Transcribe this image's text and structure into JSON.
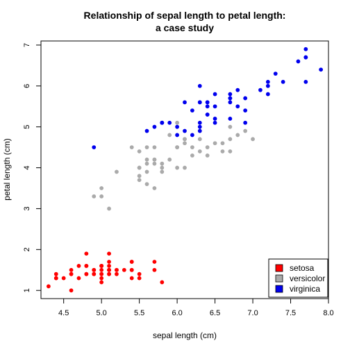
{
  "chart_data": {
    "type": "scatter",
    "title": "Relationship of sepal length to petal length:",
    "subtitle": "a case study",
    "xlabel": "sepal length (cm)",
    "ylabel": "petal length (cm)",
    "xlim": [
      4.2,
      8.0
    ],
    "ylim": [
      0.8,
      7.1
    ],
    "xticks": [
      "4.5",
      "5.0",
      "5.5",
      "6.0",
      "6.5",
      "7.0",
      "7.5",
      "8.0"
    ],
    "yticks": [
      "1",
      "2",
      "3",
      "4",
      "5",
      "6",
      "7"
    ],
    "grid": false,
    "legend_position": "bottom-right",
    "series": [
      {
        "name": "setosa",
        "color": "#ff0000",
        "points": [
          [
            5.1,
            1.4
          ],
          [
            4.9,
            1.4
          ],
          [
            4.7,
            1.3
          ],
          [
            4.6,
            1.5
          ],
          [
            5.0,
            1.4
          ],
          [
            5.4,
            1.7
          ],
          [
            4.6,
            1.4
          ],
          [
            5.0,
            1.5
          ],
          [
            4.4,
            1.4
          ],
          [
            4.9,
            1.5
          ],
          [
            5.4,
            1.5
          ],
          [
            4.8,
            1.6
          ],
          [
            4.8,
            1.4
          ],
          [
            4.3,
            1.1
          ],
          [
            5.8,
            1.2
          ],
          [
            5.7,
            1.5
          ],
          [
            5.4,
            1.3
          ],
          [
            5.1,
            1.4
          ],
          [
            5.7,
            1.7
          ],
          [
            5.1,
            1.5
          ],
          [
            5.4,
            1.7
          ],
          [
            5.1,
            1.5
          ],
          [
            4.6,
            1.0
          ],
          [
            5.1,
            1.7
          ],
          [
            4.8,
            1.9
          ],
          [
            5.0,
            1.6
          ],
          [
            5.0,
            1.6
          ],
          [
            5.2,
            1.5
          ],
          [
            5.2,
            1.4
          ],
          [
            4.7,
            1.6
          ],
          [
            4.8,
            1.6
          ],
          [
            5.4,
            1.5
          ],
          [
            5.2,
            1.5
          ],
          [
            5.5,
            1.4
          ],
          [
            4.9,
            1.5
          ],
          [
            5.0,
            1.2
          ],
          [
            5.5,
            1.3
          ],
          [
            4.9,
            1.4
          ],
          [
            4.4,
            1.3
          ],
          [
            5.1,
            1.5
          ],
          [
            5.0,
            1.3
          ],
          [
            4.5,
            1.3
          ],
          [
            4.4,
            1.3
          ],
          [
            5.0,
            1.6
          ],
          [
            5.1,
            1.9
          ],
          [
            4.8,
            1.4
          ],
          [
            5.1,
            1.6
          ],
          [
            4.6,
            1.4
          ],
          [
            5.3,
            1.5
          ],
          [
            5.0,
            1.4
          ]
        ]
      },
      {
        "name": "versicolor",
        "color": "#aaaaaa",
        "points": [
          [
            7.0,
            4.7
          ],
          [
            6.4,
            4.5
          ],
          [
            6.9,
            4.9
          ],
          [
            5.5,
            4.0
          ],
          [
            6.5,
            4.6
          ],
          [
            5.7,
            4.5
          ],
          [
            6.3,
            4.7
          ],
          [
            4.9,
            3.3
          ],
          [
            6.6,
            4.6
          ],
          [
            5.2,
            3.9
          ],
          [
            5.0,
            3.5
          ],
          [
            5.9,
            4.2
          ],
          [
            6.0,
            4.0
          ],
          [
            6.1,
            4.7
          ],
          [
            5.6,
            3.6
          ],
          [
            6.7,
            4.4
          ],
          [
            5.6,
            4.5
          ],
          [
            5.8,
            4.1
          ],
          [
            6.2,
            4.5
          ],
          [
            5.6,
            3.9
          ],
          [
            5.9,
            4.8
          ],
          [
            6.1,
            4.0
          ],
          [
            6.3,
            4.9
          ],
          [
            6.1,
            4.7
          ],
          [
            6.4,
            4.3
          ],
          [
            6.6,
            4.4
          ],
          [
            6.8,
            4.8
          ],
          [
            6.7,
            5.0
          ],
          [
            6.0,
            4.5
          ],
          [
            5.7,
            3.5
          ],
          [
            5.5,
            3.8
          ],
          [
            5.5,
            3.7
          ],
          [
            5.8,
            3.9
          ],
          [
            6.0,
            5.1
          ],
          [
            5.4,
            4.5
          ],
          [
            6.0,
            4.5
          ],
          [
            6.7,
            4.7
          ],
          [
            6.3,
            4.4
          ],
          [
            5.6,
            4.1
          ],
          [
            5.5,
            4.0
          ],
          [
            5.5,
            4.4
          ],
          [
            6.1,
            4.6
          ],
          [
            5.8,
            4.0
          ],
          [
            5.0,
            3.3
          ],
          [
            5.6,
            4.2
          ],
          [
            5.7,
            4.2
          ],
          [
            5.7,
            4.2
          ],
          [
            6.2,
            4.3
          ],
          [
            5.1,
            3.0
          ],
          [
            5.7,
            4.1
          ]
        ]
      },
      {
        "name": "virginica",
        "color": "#0000ee",
        "points": [
          [
            6.3,
            6.0
          ],
          [
            5.8,
            5.1
          ],
          [
            7.1,
            5.9
          ],
          [
            6.3,
            5.6
          ],
          [
            6.5,
            5.8
          ],
          [
            7.6,
            6.6
          ],
          [
            4.9,
            4.5
          ],
          [
            7.3,
            6.3
          ],
          [
            6.7,
            5.8
          ],
          [
            7.2,
            6.1
          ],
          [
            6.5,
            5.1
          ],
          [
            6.4,
            5.3
          ],
          [
            6.8,
            5.5
          ],
          [
            5.7,
            5.0
          ],
          [
            5.8,
            5.1
          ],
          [
            6.4,
            5.3
          ],
          [
            6.5,
            5.5
          ],
          [
            7.7,
            6.7
          ],
          [
            7.7,
            6.9
          ],
          [
            6.0,
            5.0
          ],
          [
            6.9,
            5.7
          ],
          [
            5.6,
            4.9
          ],
          [
            7.7,
            6.7
          ],
          [
            6.3,
            4.9
          ],
          [
            6.7,
            5.7
          ],
          [
            7.2,
            6.0
          ],
          [
            6.2,
            4.8
          ],
          [
            6.1,
            4.9
          ],
          [
            6.4,
            5.6
          ],
          [
            7.2,
            5.8
          ],
          [
            7.4,
            6.1
          ],
          [
            7.9,
            6.4
          ],
          [
            6.4,
            5.6
          ],
          [
            6.3,
            5.1
          ],
          [
            6.1,
            5.6
          ],
          [
            7.7,
            6.1
          ],
          [
            6.3,
            5.6
          ],
          [
            6.4,
            5.5
          ],
          [
            6.0,
            4.8
          ],
          [
            6.9,
            5.4
          ],
          [
            6.7,
            5.6
          ],
          [
            6.9,
            5.1
          ],
          [
            5.8,
            5.1
          ],
          [
            6.8,
            5.9
          ],
          [
            6.7,
            5.7
          ],
          [
            6.7,
            5.2
          ],
          [
            6.3,
            5.0
          ],
          [
            6.5,
            5.2
          ],
          [
            6.2,
            5.4
          ],
          [
            5.9,
            5.1
          ]
        ]
      }
    ]
  }
}
